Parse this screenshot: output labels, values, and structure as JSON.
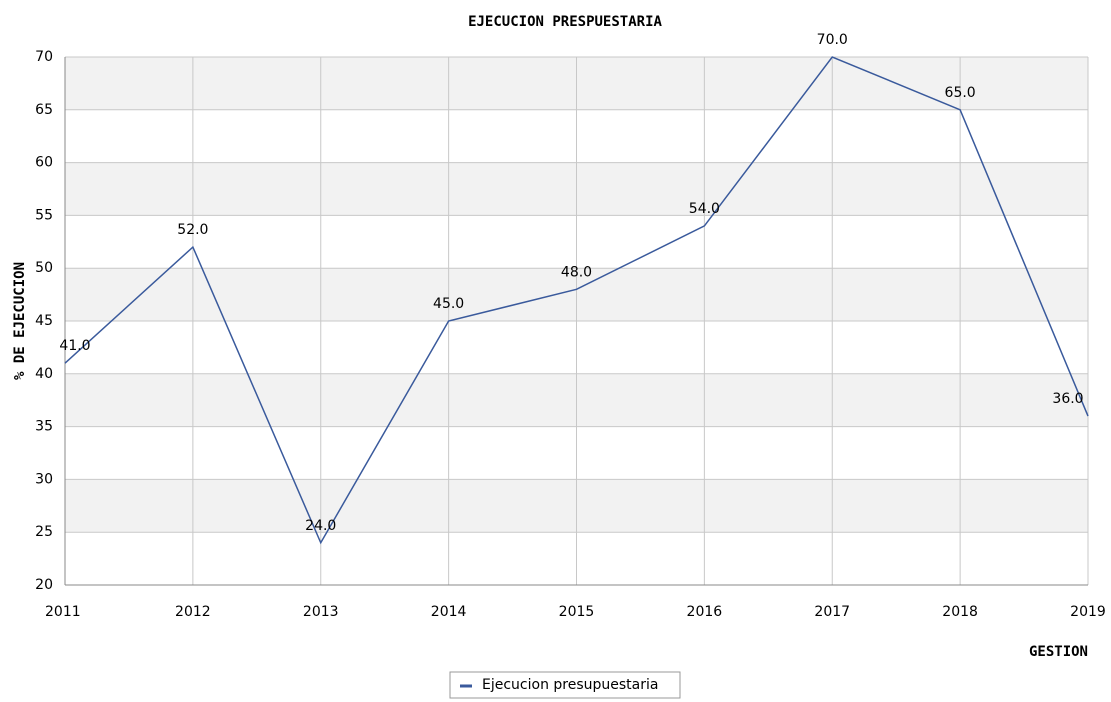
{
  "chart_data": {
    "type": "line",
    "title": "EJECUCION PRESPUESTARIA",
    "x_label": "GESTION",
    "y_label": "% DE EJECUCION",
    "x": [
      2011,
      2012,
      2013,
      2014,
      2015,
      2016,
      2017,
      2018,
      2019
    ],
    "series": [
      {
        "name": "Ejecucion presupuestaria",
        "color": "#3a5a9c",
        "values": [
          41,
          52,
          24,
          45,
          48,
          54,
          70,
          65,
          36
        ],
        "value_labels": [
          "41.0",
          "52.0",
          "24.0",
          "45.0",
          "48.0",
          "54.0",
          "70.0",
          "65.0",
          "36.0"
        ]
      }
    ],
    "xlim": [
      2011,
      2019
    ],
    "xticks": [
      2011,
      2012,
      2013,
      2014,
      2015,
      2016,
      2017,
      2018,
      2019
    ],
    "ylim": [
      20,
      70
    ],
    "yticks": [
      20,
      25,
      30,
      35,
      40,
      45,
      50,
      55,
      60,
      65,
      70
    ],
    "grid": true,
    "band_color": "#f2f2f2",
    "legend": "bottom"
  }
}
